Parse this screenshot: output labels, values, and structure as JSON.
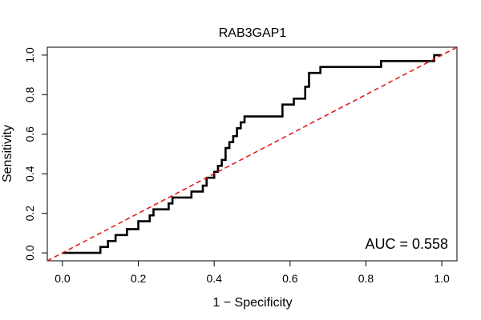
{
  "chart_data": {
    "type": "line",
    "title": "RAB3GAP1",
    "xlabel": "1 − Specificity",
    "ylabel": "Sensitivity",
    "xlim": [
      -0.04,
      1.04
    ],
    "ylim": [
      -0.04,
      1.04
    ],
    "x_ticks": [
      0.0,
      0.2,
      0.4,
      0.6,
      0.8,
      1.0
    ],
    "x_tick_labels": [
      "0.0",
      "0.2",
      "0.4",
      "0.6",
      "0.8",
      "1.0"
    ],
    "y_ticks": [
      0.0,
      0.2,
      0.4,
      0.6,
      0.8,
      1.0
    ],
    "y_tick_labels": [
      "0.0",
      "0.2",
      "0.4",
      "0.6",
      "0.8",
      "1.0"
    ],
    "grid": false,
    "annotation": "AUC = 0.558",
    "series": [
      {
        "role": "roc-curve",
        "color": "#000000",
        "step": true,
        "x": [
          0.0,
          0.1,
          0.12,
          0.14,
          0.17,
          0.2,
          0.23,
          0.24,
          0.28,
          0.29,
          0.34,
          0.37,
          0.38,
          0.4,
          0.41,
          0.42,
          0.43,
          0.44,
          0.45,
          0.46,
          0.47,
          0.48,
          0.58,
          0.61,
          0.64,
          0.65,
          0.68,
          0.84,
          0.98,
          1.0
        ],
        "y": [
          0.0,
          0.03,
          0.06,
          0.09,
          0.12,
          0.16,
          0.19,
          0.22,
          0.25,
          0.28,
          0.31,
          0.34,
          0.38,
          0.41,
          0.44,
          0.47,
          0.53,
          0.56,
          0.59,
          0.63,
          0.66,
          0.69,
          0.75,
          0.78,
          0.84,
          0.91,
          0.94,
          0.97,
          1.0,
          1.0
        ]
      },
      {
        "role": "reference-diagonal",
        "color": "#e31a1c",
        "dashed": true,
        "x": [
          -0.04,
          1.04
        ],
        "y": [
          -0.04,
          1.04
        ]
      }
    ]
  }
}
